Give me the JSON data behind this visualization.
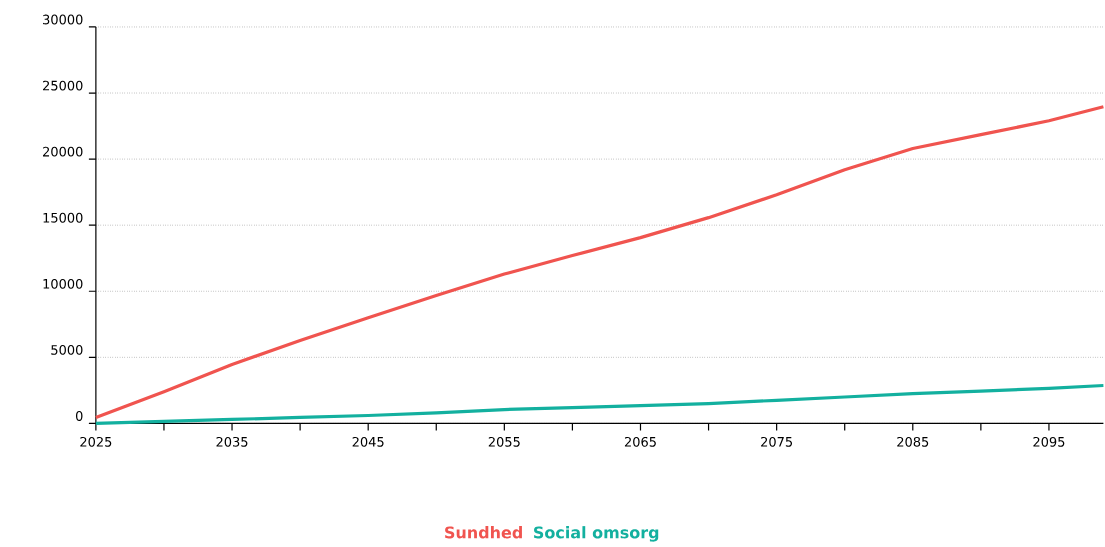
{
  "chart_data": {
    "type": "line",
    "x": [
      2025,
      2030,
      2035,
      2040,
      2045,
      2050,
      2055,
      2060,
      2065,
      2070,
      2075,
      2080,
      2085,
      2090,
      2095,
      2099
    ],
    "series": [
      {
        "name": "Sundhed",
        "color": "#f0544f",
        "values": [
          450,
          2400,
          4460,
          6270,
          8000,
          9680,
          11300,
          12700,
          14060,
          15570,
          17300,
          19200,
          20800,
          21850,
          22900,
          23960
        ]
      },
      {
        "name": "Social omsorg",
        "color": "#13b09f",
        "values": [
          0,
          150,
          300,
          450,
          600,
          800,
          1050,
          1200,
          1350,
          1500,
          1750,
          2000,
          2250,
          2450,
          2650,
          2870
        ]
      }
    ],
    "xlim": [
      2025,
      2099
    ],
    "xticks": [
      2025,
      {
        "value": 2030,
        "label": null
      },
      2035,
      {
        "value": 2040,
        "label": null
      },
      2045,
      {
        "value": 2050,
        "label": null
      },
      2055,
      {
        "value": 2060,
        "label": null
      },
      2065,
      {
        "value": 2070,
        "label": null
      },
      2075,
      {
        "value": 2080,
        "label": null
      },
      2085,
      {
        "value": 2090,
        "label": null
      },
      2095
    ],
    "ylim": [
      0,
      30000
    ],
    "yticks": [
      0,
      5000,
      10000,
      15000,
      20000,
      25000,
      30000
    ],
    "grid": "y",
    "legend": "bottom",
    "marker": "none",
    "line_style": "solid"
  }
}
